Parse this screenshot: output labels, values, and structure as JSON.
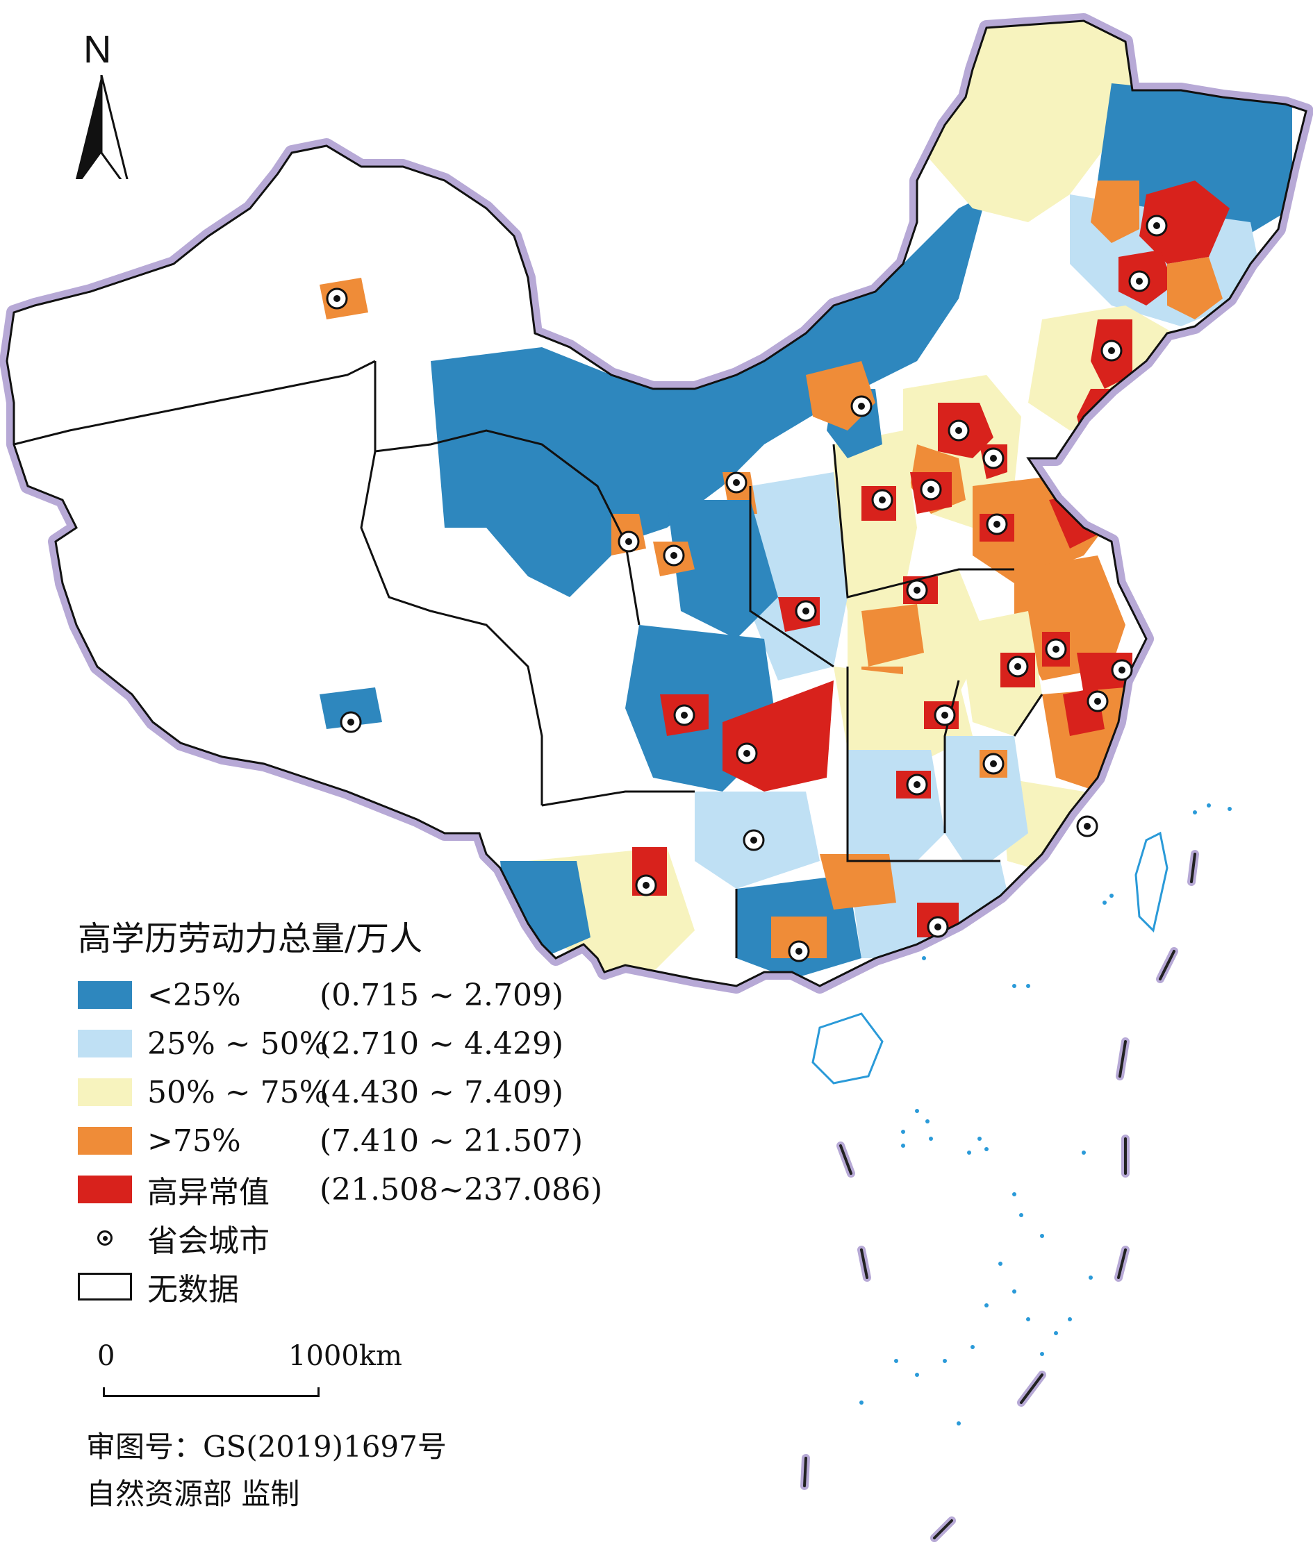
{
  "north_arrow": {
    "letter": "N",
    "icon": "north-arrow-icon"
  },
  "legend": {
    "title": "高学历劳动力总量/万人",
    "classes": [
      {
        "label": "<25%",
        "range": "(0.715 ~ 2.709)",
        "color": "#2e87be"
      },
      {
        "label": "25% ~ 50%",
        "range": "(2.710 ~ 4.429)",
        "color": "#bfe0f4"
      },
      {
        "label": "50% ~ 75%",
        "range": "(4.430 ~ 7.409)",
        "color": "#f7f3be"
      },
      {
        "label": ">75%",
        "range": "(7.410 ~ 21.507)",
        "color": "#ef8c38"
      },
      {
        "label": "高异常值",
        "range": "(21.508~237.086)",
        "color": "#d8221c"
      }
    ],
    "capital_label": "省会城市",
    "nodata_label": "无数据"
  },
  "scale_bar": {
    "zero": "0",
    "max": "1000km"
  },
  "credits": {
    "review_number": "审图号：GS(2019)1697号",
    "supervisor": "自然资源部  监制"
  },
  "colors": {
    "border_halo": "#b7a9d6",
    "boundary": "#111111",
    "sea_dots": "#2a9ad8"
  }
}
